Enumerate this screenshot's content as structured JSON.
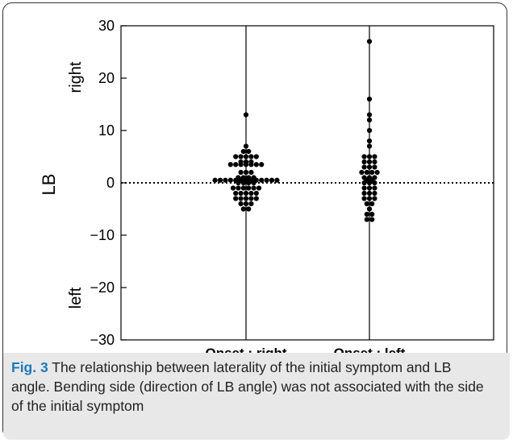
{
  "chart_data": {
    "type": "scatter",
    "categories": [
      "Onset : right",
      "Onset : left"
    ],
    "ylabel": "LB",
    "side_labels": {
      "top": "right",
      "bottom": "left"
    },
    "ylim": [
      -30,
      30
    ],
    "yticks": [
      30,
      20,
      10,
      0,
      -10,
      -20,
      -30
    ],
    "ytick_labels": [
      "30",
      "20",
      "10",
      "0",
      "−10",
      "−20",
      "−30"
    ],
    "reference_line": {
      "y": 0,
      "style": "dotted"
    },
    "grid": false,
    "series": [
      {
        "category": "Onset : right",
        "values": [
          13,
          7,
          6,
          6,
          5,
          5,
          5,
          5,
          5,
          4,
          4,
          4,
          3.5,
          3.5,
          3.5,
          3.5,
          3.5,
          3.5,
          3.5,
          2,
          2,
          2,
          1,
          1,
          1,
          1,
          0.5,
          0.5,
          0.5,
          0.5,
          0.5,
          0.5,
          0.5,
          0.5,
          0.5,
          0.5,
          0.5,
          0.5,
          0.5,
          0,
          0,
          0,
          0,
          -1,
          -1,
          -1,
          -1,
          -1,
          -1,
          -2,
          -2,
          -2,
          -2,
          -2,
          -3,
          -3,
          -3,
          -3,
          -3,
          -4,
          -4,
          -4,
          -5,
          -5
        ]
      },
      {
        "category": "Onset : left",
        "values": [
          27,
          16,
          13,
          12,
          10,
          8,
          7,
          5,
          5,
          5,
          4,
          4,
          4,
          3,
          3,
          3,
          2,
          2,
          2,
          2,
          1,
          1,
          1,
          0.5,
          0.5,
          0,
          0,
          0,
          -1,
          -1,
          -1,
          -2,
          -2,
          -2,
          -3,
          -3,
          -3,
          -4,
          -4,
          -5,
          -6,
          -6,
          -7,
          -7
        ]
      }
    ]
  },
  "caption": {
    "label": "Fig. 3",
    "text": " The relationship between laterality of the initial symptom and LB angle. Bending side (direction of LB angle) was not associated with the side of the initial symptom"
  }
}
